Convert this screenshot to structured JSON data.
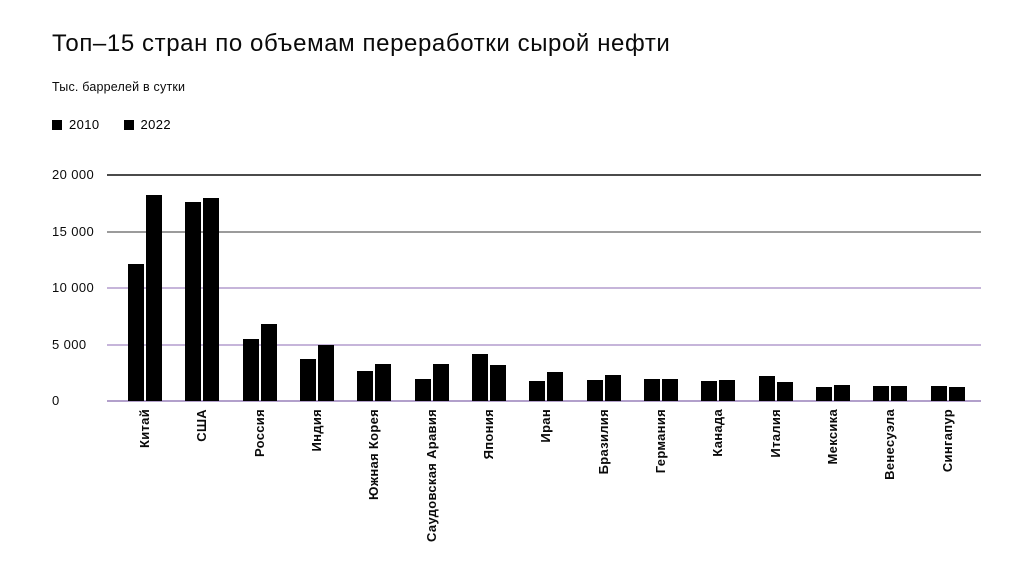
{
  "chart_data": {
    "type": "bar",
    "title": "Топ–15 стран по объемам переработки сырой нефти",
    "subtitle_units": "Тыс. баррелей в сутки",
    "legend_position": "top-left",
    "grid": "horizontal",
    "categories": [
      "Китай",
      "США",
      "Россия",
      "Индия",
      "Южная Корея",
      "Саудовская Аравия",
      "Япония",
      "Иран",
      "Бразилия",
      "Германия",
      "Канада",
      "Италия",
      "Мексика",
      "Венесуэла",
      "Сингапур"
    ],
    "series": [
      {
        "name": "2010",
        "color": "#000000",
        "values": [
          12150,
          17600,
          5450,
          3700,
          2700,
          1950,
          4200,
          1750,
          1900,
          1950,
          1750,
          2250,
          1250,
          1350,
          1350
        ]
      },
      {
        "name": "2022",
        "color": "#000000",
        "values": [
          18200,
          18000,
          6850,
          5000,
          3300,
          3250,
          3150,
          2550,
          2300,
          1950,
          1850,
          1700,
          1450,
          1300,
          1250
        ]
      }
    ],
    "ylim": [
      0,
      20000
    ],
    "yticks": [
      {
        "label": "20 000",
        "value": 20000,
        "color": "#4b4b4b",
        "thickness": 2
      },
      {
        "label": "15 000",
        "value": 15000,
        "color": "#9b9b9b",
        "thickness": 2
      },
      {
        "label": "10 000",
        "value": 10000,
        "color": "#c6b5da",
        "thickness": 2
      },
      {
        "label": "5 000",
        "value": 5000,
        "color": "#c6b5da",
        "thickness": 2
      },
      {
        "label": "0",
        "value": 0,
        "color": "#b2a0cb",
        "thickness": 2
      }
    ]
  }
}
